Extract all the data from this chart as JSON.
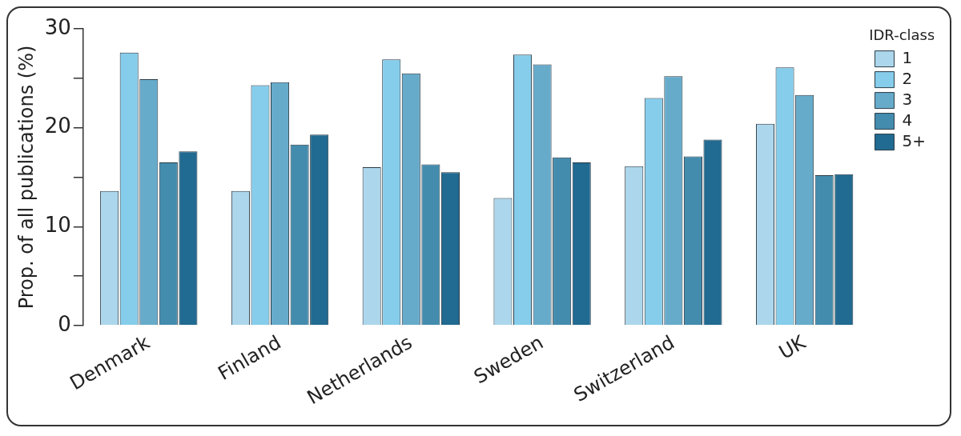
{
  "chart_data": {
    "type": "bar",
    "ylabel": "Prop. of all publications (%)",
    "legend_title": "IDR-class",
    "legend": "top right",
    "grid": false,
    "categories": [
      "Denmark",
      "Finland",
      "Netherlands",
      "Sweden",
      "Switzerland",
      "UK"
    ],
    "ylim": [
      0,
      30
    ],
    "yticks": [
      0,
      {
        "value": 5,
        "label": null
      },
      10,
      {
        "value": 15,
        "label": null
      },
      20,
      {
        "value": 25,
        "label": null
      },
      30
    ],
    "series": [
      {
        "name": "1",
        "color": "#acd6eb",
        "values": [
          13.6,
          13.6,
          16.0,
          12.9,
          16.1,
          20.4
        ]
      },
      {
        "name": "2",
        "color": "#86cdec",
        "values": [
          27.6,
          24.3,
          26.9,
          27.4,
          23.0,
          26.1
        ]
      },
      {
        "name": "3",
        "color": "#67abcb",
        "values": [
          24.9,
          24.6,
          25.5,
          26.4,
          25.2,
          23.3
        ]
      },
      {
        "name": "4",
        "color": "#438cae",
        "values": [
          16.5,
          18.3,
          16.3,
          17.0,
          17.1,
          15.2
        ]
      },
      {
        "name": "5+",
        "color": "#216a91",
        "values": [
          17.6,
          19.3,
          15.5,
          16.5,
          18.8,
          15.3
        ]
      }
    ]
  }
}
